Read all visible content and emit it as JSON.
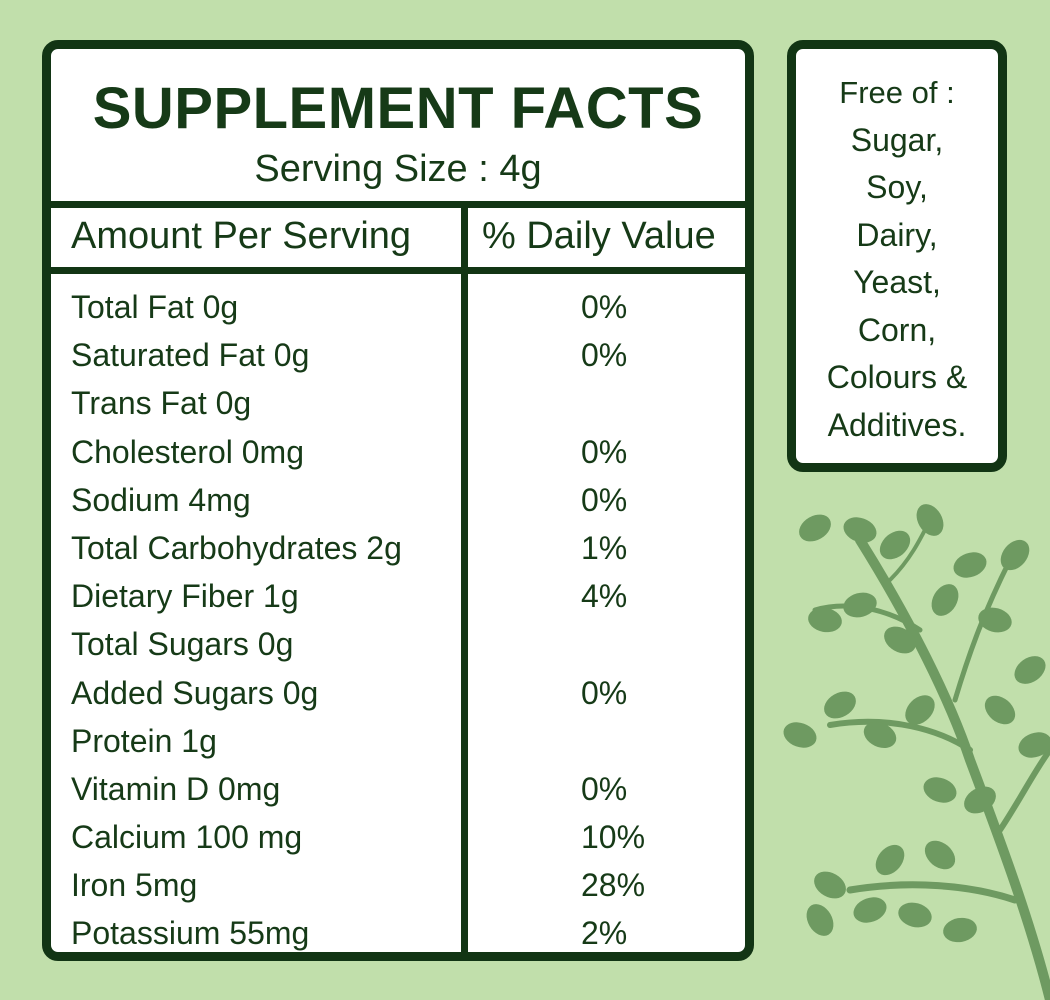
{
  "header": {
    "title": "SUPPLEMENT FACTS",
    "serving_size": "Serving Size : 4g"
  },
  "columns": {
    "amount": "Amount Per Serving",
    "daily_value": "% Daily Value"
  },
  "nutrients": [
    {
      "name": "Total Fat 0g",
      "dv": "0%"
    },
    {
      "name": "Saturated Fat 0g",
      "dv": "0%"
    },
    {
      "name": "Trans Fat 0g",
      "dv": ""
    },
    {
      "name": "Cholesterol 0mg",
      "dv": "0%"
    },
    {
      "name": "Sodium 4mg",
      "dv": "0%"
    },
    {
      "name": "Total Carbohydrates 2g",
      "dv": "1%"
    },
    {
      "name": "Dietary Fiber 1g",
      "dv": "4%"
    },
    {
      "name": "Total Sugars 0g",
      "dv": ""
    },
    {
      "name": "Added Sugars 0g",
      "dv": "0%"
    },
    {
      "name": "Protein 1g",
      "dv": ""
    },
    {
      "name": "Vitamin D 0mg",
      "dv": "0%"
    },
    {
      "name": "Calcium 100 mg",
      "dv": "10%"
    },
    {
      "name": "Iron 5mg",
      "dv": "28%"
    },
    {
      "name": "Potassium 55mg",
      "dv": "2%"
    }
  ],
  "free_of": {
    "lines": [
      "Free of :",
      "Sugar,",
      "Soy,",
      "Dairy,",
      "Yeast,",
      "Corn,",
      "Colours &",
      "Additives."
    ]
  },
  "decoration": {
    "icon": "moringa-branch-icon",
    "colors": {
      "background": "#c1dfab",
      "border": "#123514",
      "text": "#163a17",
      "leaf": "#6e9a61"
    }
  }
}
